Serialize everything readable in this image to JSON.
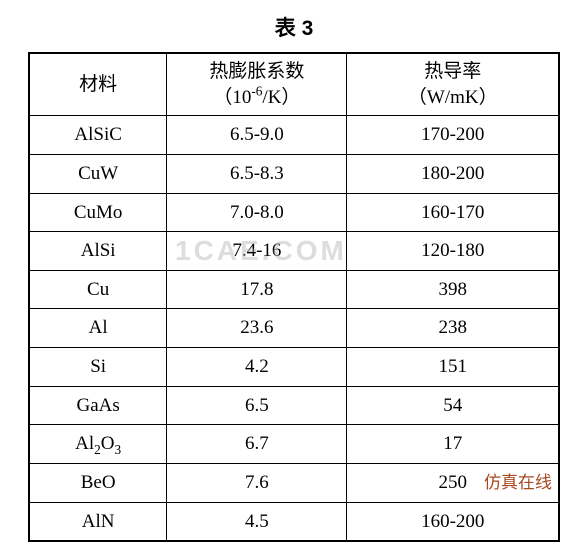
{
  "title": "表 3",
  "headers": {
    "col1_line1": "材料",
    "col2_line1": "热膨胀系数",
    "col2_line2_prefix": "（10",
    "col2_line2_exp": "-6",
    "col2_line2_suffix": "/K）",
    "col3_line1": "热导率",
    "col3_line2": "（W/mK）"
  },
  "rows": [
    {
      "material": "AlSiC",
      "expansion": "6.5-9.0",
      "conductivity": "170-200",
      "sub1": "",
      "mid": "",
      "sub2": ""
    },
    {
      "material": "CuW",
      "expansion": "6.5-8.3",
      "conductivity": "180-200",
      "sub1": "",
      "mid": "",
      "sub2": ""
    },
    {
      "material": "CuMo",
      "expansion": "7.0-8.0",
      "conductivity": "160-170",
      "sub1": "",
      "mid": "",
      "sub2": ""
    },
    {
      "material": "AlSi",
      "expansion": "7.4-16",
      "conductivity": "120-180",
      "sub1": "",
      "mid": "",
      "sub2": ""
    },
    {
      "material": "Cu",
      "expansion": "17.8",
      "conductivity": "398",
      "sub1": "",
      "mid": "",
      "sub2": ""
    },
    {
      "material": "Al",
      "expansion": "23.6",
      "conductivity": "238",
      "sub1": "",
      "mid": "",
      "sub2": ""
    },
    {
      "material": "Si",
      "expansion": "4.2",
      "conductivity": "151",
      "sub1": "",
      "mid": "",
      "sub2": ""
    },
    {
      "material": "GaAs",
      "expansion": "6.5",
      "conductivity": "54",
      "sub1": "",
      "mid": "",
      "sub2": ""
    },
    {
      "material": "Al",
      "expansion": "6.7",
      "conductivity": "17",
      "sub1": "2",
      "mid": "O",
      "sub2": "3"
    },
    {
      "material": "BeO",
      "expansion": "7.6",
      "conductivity": "250",
      "sub1": "",
      "mid": "",
      "sub2": ""
    },
    {
      "material": "AlN",
      "expansion": "4.5",
      "conductivity": "160-200",
      "sub1": "",
      "mid": "",
      "sub2": ""
    }
  ],
  "watermark_center": "1CAE.COM",
  "watermark_br": "仿真在线",
  "styling": {
    "background_color": "#ffffff",
    "border_color": "#000000",
    "outer_border_width": 2.5,
    "inner_border_width": 1,
    "font_size_title": 21,
    "font_size_cell": 19,
    "font_family": "SimSun, Times New Roman, serif",
    "watermark_center_color": "rgba(180,180,180,0.45)",
    "watermark_br_color": "#a84820",
    "col_widths_pct": [
      26,
      34,
      40
    ]
  }
}
